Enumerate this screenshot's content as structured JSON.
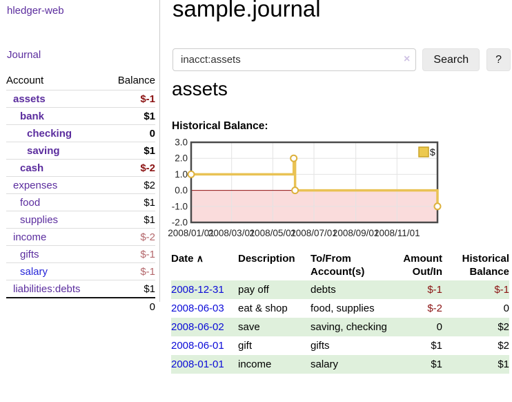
{
  "app": {
    "brand": "hledger-web",
    "nav_journal": "Journal"
  },
  "header": {
    "title": "sample.journal"
  },
  "search": {
    "value": "inacct:assets",
    "clear_label": "×",
    "button_label": "Search",
    "help_label": "?"
  },
  "main": {
    "heading": "assets",
    "chart_caption": "Historical Balance:"
  },
  "sidebar": {
    "columns": {
      "account": "Account",
      "balance": "Balance"
    },
    "accounts": [
      {
        "name": "assets",
        "depth": 1,
        "balance": "$-1",
        "bold": true,
        "neg": "strong"
      },
      {
        "name": "bank",
        "depth": 2,
        "balance": "$1",
        "bold": true
      },
      {
        "name": "checking",
        "depth": 3,
        "balance": "0",
        "bold": true
      },
      {
        "name": "saving",
        "depth": 3,
        "balance": "$1",
        "bold": true
      },
      {
        "name": "cash",
        "depth": 2,
        "balance": "$-2",
        "bold": true,
        "neg": "strong"
      },
      {
        "name": "expenses",
        "depth": 1,
        "balance": "$2"
      },
      {
        "name": "food",
        "depth": 2,
        "balance": "$1"
      },
      {
        "name": "supplies",
        "depth": 2,
        "balance": "$1"
      },
      {
        "name": "income",
        "depth": 1,
        "balance": "$-2",
        "neg": "soft"
      },
      {
        "name": "gifts",
        "depth": 2,
        "balance": "$-1",
        "neg": "soft"
      },
      {
        "name": "salary",
        "depth": 2,
        "balance": "$-1",
        "neg": "soft",
        "link": "blue"
      },
      {
        "name": "liabilities:debts",
        "depth": 1,
        "balance": "$1"
      }
    ],
    "total": "0"
  },
  "chart_data": {
    "type": "line",
    "step": true,
    "title": "Historical Balance:",
    "legend": "$",
    "legend_position": "top-right",
    "grid": true,
    "ylim": [
      -2,
      3
    ],
    "x_range": [
      "2008-01-01",
      "2008-12-31"
    ],
    "y_ticks": [
      3.0,
      2.0,
      1.0,
      0.0,
      -1.0,
      -2.0
    ],
    "y_tick_labels": [
      "3.0",
      "2.0",
      "1.0",
      "0.0",
      "-1.0",
      "-2.0"
    ],
    "x_ticks": [
      "2008-01-01",
      "2008-03-01",
      "2008-05-01",
      "2008-07-01",
      "2008-09-01",
      "2008-11-01"
    ],
    "x_tick_labels": [
      "2008/01/01",
      "2008/03/01",
      "2008/05/01",
      "2008/07/01",
      "2008/09/01",
      "2008/11/01"
    ],
    "series": [
      {
        "name": "$",
        "points": [
          {
            "x": "2008-01-01",
            "y": 1
          },
          {
            "x": "2008-06-01",
            "y": 2
          },
          {
            "x": "2008-06-03",
            "y": 0
          },
          {
            "x": "2008-12-31",
            "y": -1
          }
        ]
      }
    ],
    "colors": {
      "line": "#e9c254",
      "point_stroke": "#ddb13d",
      "point_fill": "#ffffff",
      "negative_region": "#fadcdc",
      "zero_line": "#8f0d0d",
      "grid": "#e3e3e3",
      "border": "#4a4a4a",
      "legend_fill": "#ecc94f",
      "legend_border": "#c9a227"
    }
  },
  "register": {
    "columns": {
      "date_line1": "Date",
      "sort_icon": "∧",
      "description_line1": "Description",
      "accounts_line1": "To/From",
      "accounts_line2": "Account(s)",
      "amount_line1": "Amount",
      "amount_line2": "Out/In",
      "balance_line1": "Historical",
      "balance_line2": "Balance"
    },
    "rows": [
      {
        "date": "2008-12-31",
        "description": "pay off",
        "accounts": "debts",
        "amount": "$-1",
        "amount_neg": true,
        "balance": "$-1",
        "balance_neg": true,
        "shaded": true
      },
      {
        "date": "2008-06-03",
        "description": "eat & shop",
        "accounts": "food, supplies",
        "amount": "$-2",
        "amount_neg": true,
        "balance": "0",
        "balance_neg": false,
        "shaded": false
      },
      {
        "date": "2008-06-02",
        "description": "save",
        "accounts": "saving, checking",
        "amount": "0",
        "amount_neg": false,
        "balance": "$2",
        "balance_neg": false,
        "shaded": true
      },
      {
        "date": "2008-06-01",
        "description": "gift",
        "accounts": "gifts",
        "amount": "$1",
        "amount_neg": false,
        "balance": "$2",
        "balance_neg": false,
        "shaded": false
      },
      {
        "date": "2008-01-01",
        "description": "income",
        "accounts": "salary",
        "amount": "$1",
        "amount_neg": false,
        "balance": "$1",
        "balance_neg": false,
        "shaded": true
      }
    ]
  },
  "colors": {
    "link_purple": "#5b2d9e",
    "link_blue": "#2626d8",
    "date_blue": "#0b0bd8",
    "negative_strong": "#8b1313",
    "negative_soft": "#b4686c",
    "row_green": "#dff0dc"
  }
}
